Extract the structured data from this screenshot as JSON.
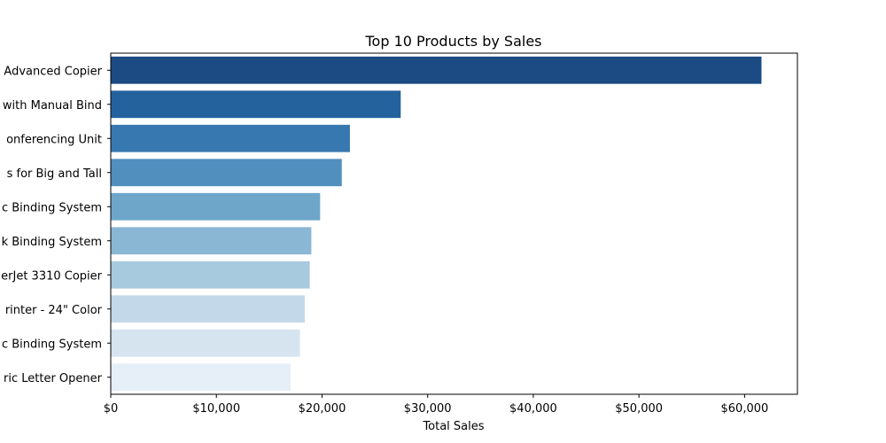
{
  "chart_data": {
    "type": "bar",
    "orientation": "horizontal",
    "title": "Top 10 Products by Sales",
    "xlabel": "Total Sales",
    "ylabel": "",
    "xlim": [
      0,
      65000
    ],
    "xticks": [
      0,
      10000,
      20000,
      30000,
      40000,
      50000,
      60000
    ],
    "xtick_labels": [
      "$0",
      "$10,000",
      "$20,000",
      "$30,000",
      "$40,000",
      "$50,000",
      "$60,000"
    ],
    "grid": false,
    "legend": "none",
    "categories": [
      "Advanced Copier",
      "with Manual Bind",
      "onferencing Unit",
      "s for Big and Tall",
      "c Binding System",
      "k Binding System",
      "erJet 3310 Copier",
      "rinter - 24\" Color",
      "c Binding System",
      "ric Letter Opener"
    ],
    "values": [
      61600,
      27450,
      22640,
      21870,
      19820,
      18990,
      18840,
      18370,
      17910,
      17030
    ],
    "colors": [
      "#1c4b84",
      "#24629e",
      "#3878b0",
      "#518fbe",
      "#6ea6ca",
      "#8ab8d4",
      "#a8cadf",
      "#c3d9ea",
      "#d6e4f0",
      "#e6eff8"
    ]
  }
}
